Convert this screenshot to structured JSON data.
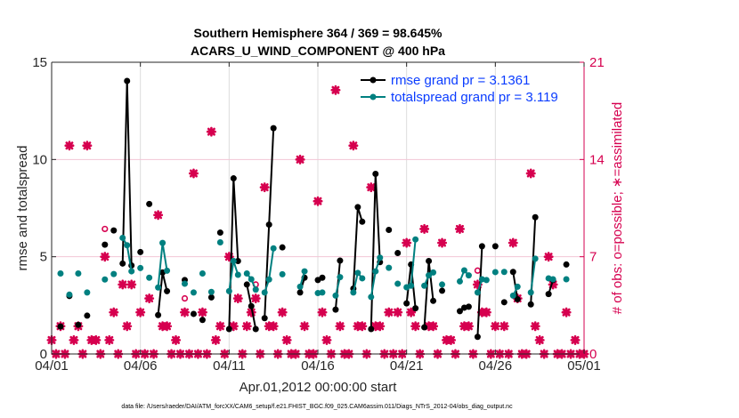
{
  "colors": {
    "rmse": "#000000",
    "totalspread": "#008080",
    "obs": "#d6004f",
    "legend_text": "#0a3cff"
  },
  "footer": "data file: /Users/raeder/DAI/ATM_forcXX/CAM6_setup/f.e21.FHIST_BGC.f09_025.CAM6assim.011/Diags_NTrS_2012-04/obs_diag_output.nc",
  "chart_data": {
    "type": "line",
    "title": [
      "Southern Hemisphere 364 / 369 = 98.645%",
      "ACARS_U_WIND_COMPONENT @ 400 hPa"
    ],
    "xlabel": "Apr.01,2012 00:00:00 start",
    "ylabel": "rmse and totalspread",
    "y2label": "# of obs: o=possible; ∗=assimilated",
    "ylim": [
      0,
      15
    ],
    "y2lim": [
      0,
      21
    ],
    "xlim": [
      "04/01 00",
      "05/01 00"
    ],
    "xticks": [
      "04/01",
      "04/06",
      "04/11",
      "04/16",
      "04/21",
      "04/26",
      "05/01"
    ],
    "yticks": [
      "0",
      "5",
      "10",
      "15"
    ],
    "y2ticks": [
      "0",
      "7",
      "14",
      "21"
    ],
    "grid": true,
    "legend_placement": "top-right",
    "series": [
      {
        "name": "rmse grand pr = 3.1361",
        "color": "#000000",
        "points": {
          "04/01 12": 1.41,
          "04/02 00": 2.98,
          "04/02 12": 1.5,
          "04/03 00": 1.97,
          "04/04 00": 5.62,
          "04/04 12": 6.35,
          "04/05 00": 4.65,
          "04/05 06": 14.04,
          "04/05 12": 4.55,
          "04/06 00": 5.24,
          "04/06 12": 7.71,
          "04/07 00": 2.0,
          "04/07 06": 4.19,
          "04/07 12": 3.23,
          "04/08 12": 3.8,
          "04/09 00": 2.06,
          "04/09 12": 1.75,
          "04/10 00": 2.91,
          "04/10 12": 6.24,
          "04/11 00": 1.28,
          "04/11 06": 9.03,
          "04/11 12": 4.78,
          "04/12 00": 3.57,
          "04/12 06": 2.46,
          "04/12 12": 1.28,
          "04/13 00": 1.84,
          "04/13 06": 6.65,
          "04/13 12": 11.61,
          "04/14 00": 5.48,
          "04/15 00": 3.16,
          "04/15 06": 3.92,
          "04/16 00": 3.8,
          "04/16 06": 3.92,
          "04/17 00": 2.28,
          "04/17 06": 4.8,
          "04/18 00": 3.36,
          "04/18 06": 7.55,
          "04/18 12": 6.8,
          "04/19 00": 1.28,
          "04/19 06": 9.26,
          "04/19 12": 4.72,
          "04/20 00": 6.38,
          "04/20 12": 5.19,
          "04/21 00": 2.6,
          "04/21 06": 4.6,
          "04/21 12": 2.35,
          "04/22 00": 1.37,
          "04/22 06": 4.78,
          "04/22 12": 2.73,
          "04/23 00": 3.25,
          "04/24 00": 2.2,
          "04/24 06": 2.38,
          "04/24 12": 2.43,
          "04/25 00": 0.88,
          "04/25 06": 5.54,
          "04/26 00": 5.54,
          "04/26 12": 2.66,
          "04/27 00": 4.22,
          "04/27 06": 2.81,
          "04/28 00": 2.55,
          "04/28 06": 7.03,
          "04/29 00": 3.08,
          "04/29 06": 3.8,
          "04/30 00": 4.6
        }
      },
      {
        "name": "totalspread grand pr = 3.119",
        "color": "#008080",
        "points": {
          "04/01 12": 4.14,
          "04/02 00": 3.05,
          "04/02 12": 4.14,
          "04/03 00": 3.16,
          "04/04 00": 3.83,
          "04/04 12": 4.11,
          "04/05 00": 5.97,
          "04/05 06": 5.59,
          "04/05 12": 4.25,
          "04/06 00": 4.42,
          "04/06 12": 3.92,
          "04/07 00": 3.42,
          "04/07 06": 5.71,
          "04/07 12": 4.28,
          "04/08 12": 3.61,
          "04/09 00": 3.16,
          "04/09 12": 4.14,
          "04/10 00": 3.19,
          "04/10 12": 5.74,
          "04/11 00": 3.23,
          "04/11 06": 4.78,
          "04/11 12": 4.07,
          "04/12 00": 4.14,
          "04/12 06": 3.84,
          "04/12 12": 3.31,
          "04/13 00": 3.16,
          "04/13 06": 3.83,
          "04/13 12": 5.43,
          "04/14 00": 4.1,
          "04/15 00": 3.46,
          "04/15 06": 4.25,
          "04/16 00": 3.13,
          "04/16 06": 3.16,
          "04/17 00": 3.0,
          "04/17 06": 3.95,
          "04/18 00": 3.16,
          "04/18 06": 4.17,
          "04/18 12": 3.89,
          "04/19 00": 2.93,
          "04/19 06": 4.25,
          "04/19 12": 4.95,
          "04/20 00": 4.43,
          "04/20 12": 3.61,
          "04/21 00": 3.43,
          "04/21 06": 3.51,
          "04/21 12": 5.89,
          "04/22 00": 3.51,
          "04/22 06": 4.04,
          "04/22 12": 4.19,
          "04/23 00": 3.57,
          "04/24 00": 3.73,
          "04/24 06": 4.3,
          "04/24 12": 4.04,
          "04/25 00": 3.16,
          "04/25 06": 3.84,
          "04/25 12": 3.8,
          "04/26 00": 4.21,
          "04/26 12": 4.22,
          "04/27 00": 3.0,
          "04/27 06": 3.46,
          "04/28 00": 3.16,
          "04/28 06": 4.9,
          "04/29 00": 3.89,
          "04/29 06": 3.84,
          "04/30 00": 3.84
        }
      }
    ],
    "obs_columns": [
      "time",
      "possible",
      "assimilated"
    ],
    "obs": [
      [
        "04/01 00",
        1,
        1
      ],
      [
        "04/01 06",
        0,
        0
      ],
      [
        "04/01 12",
        2,
        2
      ],
      [
        "04/01 18",
        0,
        0
      ],
      [
        "04/02 00",
        15,
        15
      ],
      [
        "04/02 06",
        1,
        1
      ],
      [
        "04/02 12",
        2,
        2
      ],
      [
        "04/02 18",
        0,
        0
      ],
      [
        "04/03 00",
        15,
        15
      ],
      [
        "04/03 06",
        1,
        1
      ],
      [
        "04/03 12",
        1,
        1
      ],
      [
        "04/03 18",
        0,
        0
      ],
      [
        "04/04 00",
        9,
        7
      ],
      [
        "04/04 06",
        1,
        1
      ],
      [
        "04/04 12",
        3,
        3
      ],
      [
        "04/04 18",
        0,
        0
      ],
      [
        "04/05 00",
        5,
        5
      ],
      [
        "04/05 06",
        2,
        2
      ],
      [
        "04/05 12",
        5,
        5
      ],
      [
        "04/05 18",
        0,
        0
      ],
      [
        "04/06 00",
        3,
        3
      ],
      [
        "04/06 06",
        0,
        0
      ],
      [
        "04/06 12",
        4,
        4
      ],
      [
        "04/06 18",
        0,
        0
      ],
      [
        "04/07 00",
        10,
        10
      ],
      [
        "04/07 06",
        2,
        2
      ],
      [
        "04/07 12",
        2,
        2
      ],
      [
        "04/07 18",
        0,
        0
      ],
      [
        "04/08 00",
        1,
        1
      ],
      [
        "04/08 06",
        0,
        0
      ],
      [
        "04/08 12",
        4,
        3
      ],
      [
        "04/08 18",
        0,
        0
      ],
      [
        "04/09 00",
        13,
        13
      ],
      [
        "04/09 06",
        0,
        0
      ],
      [
        "04/09 12",
        3,
        3
      ],
      [
        "04/09 18",
        0,
        0
      ],
      [
        "04/10 00",
        16,
        16
      ],
      [
        "04/10 06",
        1,
        1
      ],
      [
        "04/10 12",
        2,
        2
      ],
      [
        "04/10 18",
        0,
        0
      ],
      [
        "04/11 00",
        7,
        7
      ],
      [
        "04/11 06",
        2,
        2
      ],
      [
        "04/11 12",
        4,
        4
      ],
      [
        "04/11 18",
        0,
        0
      ],
      [
        "04/12 00",
        2,
        2
      ],
      [
        "04/12 06",
        3,
        3
      ],
      [
        "04/12 12",
        5,
        4
      ],
      [
        "04/12 18",
        0,
        0
      ],
      [
        "04/13 00",
        12,
        12
      ],
      [
        "04/13 06",
        2,
        2
      ],
      [
        "04/13 12",
        2,
        2
      ],
      [
        "04/13 18",
        0,
        0
      ],
      [
        "04/14 00",
        3,
        3
      ],
      [
        "04/14 06",
        1,
        1
      ],
      [
        "04/14 12",
        0,
        0
      ],
      [
        "04/14 18",
        0,
        0
      ],
      [
        "04/15 00",
        14,
        14
      ],
      [
        "04/15 06",
        2,
        2
      ],
      [
        "04/15 12",
        0,
        0
      ],
      [
        "04/15 18",
        0,
        0
      ],
      [
        "04/16 00",
        11,
        11
      ],
      [
        "04/16 06",
        3,
        3
      ],
      [
        "04/16 12",
        1,
        1
      ],
      [
        "04/16 18",
        0,
        0
      ],
      [
        "04/17 00",
        19,
        19
      ],
      [
        "04/17 06",
        2,
        2
      ],
      [
        "04/17 12",
        0,
        0
      ],
      [
        "04/17 18",
        0,
        0
      ],
      [
        "04/18 00",
        15,
        15
      ],
      [
        "04/18 06",
        2,
        2
      ],
      [
        "04/18 12",
        2,
        2
      ],
      [
        "04/18 18",
        0,
        0
      ],
      [
        "04/19 00",
        12,
        12
      ],
      [
        "04/19 06",
        2,
        2
      ],
      [
        "04/19 12",
        2,
        2
      ],
      [
        "04/19 18",
        0,
        0
      ],
      [
        "04/20 00",
        3,
        3
      ],
      [
        "04/20 06",
        0,
        0
      ],
      [
        "04/20 12",
        3,
        3
      ],
      [
        "04/20 18",
        0,
        0
      ],
      [
        "04/21 00",
        8,
        8
      ],
      [
        "04/21 06",
        3,
        3
      ],
      [
        "04/21 12",
        2,
        2
      ],
      [
        "04/21 18",
        0,
        0
      ],
      [
        "04/22 00",
        9,
        9
      ],
      [
        "04/22 06",
        2,
        2
      ],
      [
        "04/22 12",
        2,
        2
      ],
      [
        "04/22 18",
        0,
        0
      ],
      [
        "04/23 00",
        8,
        8
      ],
      [
        "04/23 06",
        1,
        1
      ],
      [
        "04/23 12",
        1,
        1
      ],
      [
        "04/23 18",
        0,
        0
      ],
      [
        "04/24 00",
        9,
        9
      ],
      [
        "04/24 06",
        2,
        2
      ],
      [
        "04/24 12",
        2,
        2
      ],
      [
        "04/24 18",
        0,
        0
      ],
      [
        "04/25 00",
        6,
        5
      ],
      [
        "04/25 06",
        3,
        3
      ],
      [
        "04/25 12",
        3,
        3
      ],
      [
        "04/25 18",
        0,
        0
      ],
      [
        "04/26 00",
        2,
        2
      ],
      [
        "04/26 06",
        0,
        0
      ],
      [
        "04/26 12",
        2,
        2
      ],
      [
        "04/26 18",
        0,
        0
      ],
      [
        "04/27 00",
        8,
        8
      ],
      [
        "04/27 06",
        4,
        4
      ],
      [
        "04/27 12",
        0,
        0
      ],
      [
        "04/27 18",
        0,
        0
      ],
      [
        "04/28 00",
        13,
        13
      ],
      [
        "04/28 06",
        2,
        2
      ],
      [
        "04/28 12",
        1,
        1
      ],
      [
        "04/28 18",
        0,
        0
      ],
      [
        "04/29 00",
        7,
        7
      ],
      [
        "04/29 06",
        5,
        5
      ],
      [
        "04/29 12",
        0,
        0
      ],
      [
        "04/29 18",
        0,
        0
      ],
      [
        "04/30 00",
        3,
        3
      ],
      [
        "04/30 06",
        0,
        0
      ],
      [
        "04/30 12",
        1,
        1
      ],
      [
        "04/30 18",
        0,
        0
      ],
      [
        "05/01 00",
        0,
        0
      ]
    ]
  }
}
